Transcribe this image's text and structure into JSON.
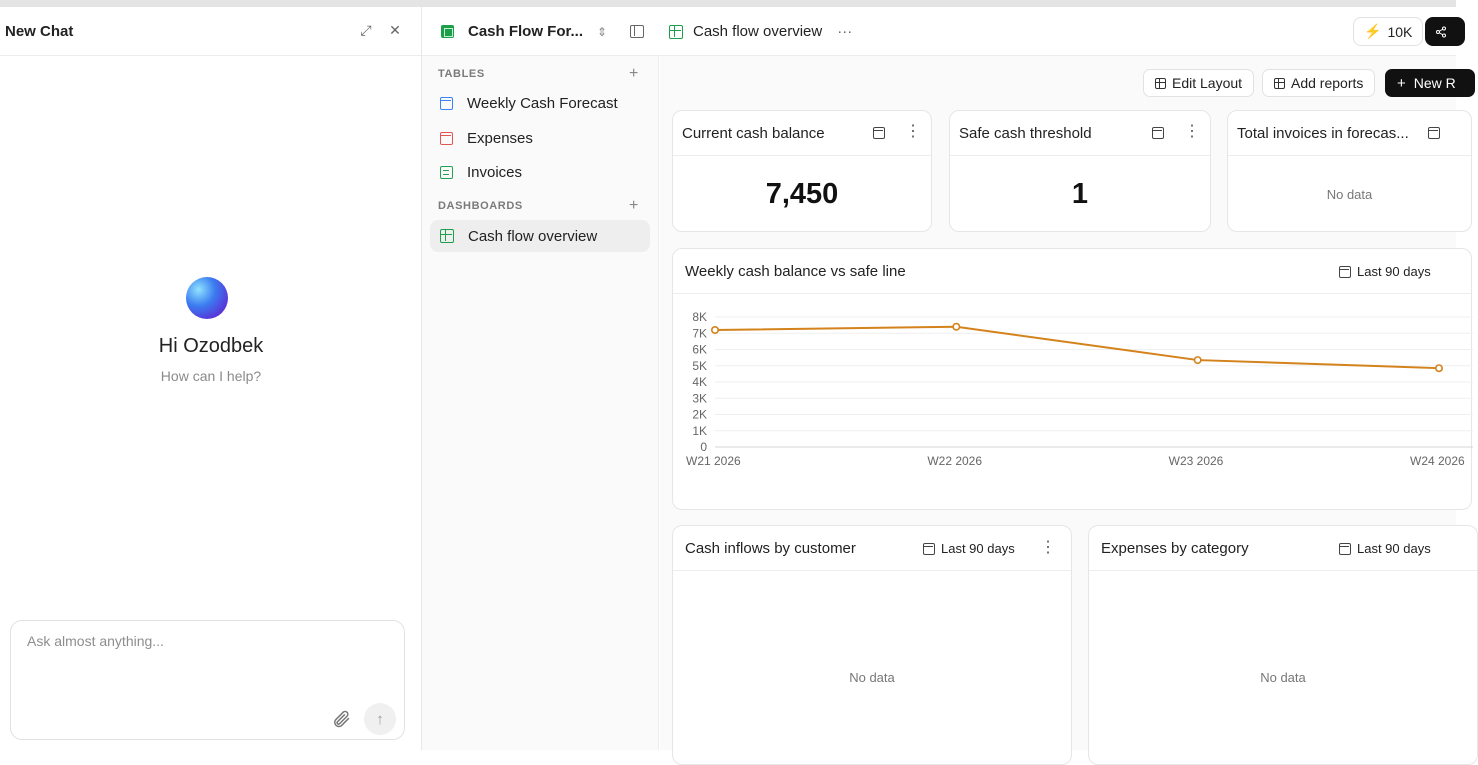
{
  "chat": {
    "title": "New Chat",
    "greeting": "Hi Ozodbek",
    "subtitle": "How can I help?",
    "input_placeholder": "Ask almost anything..."
  },
  "topbar": {
    "workspace_name": "Cash Flow For...",
    "current_view": "Cash flow overview",
    "more": "···",
    "credits": "10K"
  },
  "sidebar": {
    "tables_label": "TABLES",
    "tables": [
      {
        "label": "Weekly Cash Forecast",
        "icon": "table-icon-blue"
      },
      {
        "label": "Expenses",
        "icon": "table-icon-red"
      },
      {
        "label": "Invoices",
        "icon": "table-icon-green"
      }
    ],
    "dashboards_label": "DASHBOARDS",
    "dashboards": [
      {
        "label": "Cash flow overview",
        "icon": "grid-icon"
      }
    ]
  },
  "toolbar": {
    "edit_layout": "Edit Layout",
    "add_reports": "Add reports",
    "new_report": "New R"
  },
  "cards": {
    "current_balance": {
      "title": "Current cash balance",
      "value": "7,450"
    },
    "safe_threshold": {
      "title": "Safe cash threshold",
      "value": "1"
    },
    "total_invoices": {
      "title": "Total invoices in forecas...",
      "empty": "No data"
    },
    "weekly_chart": {
      "title": "Weekly cash balance vs safe line",
      "range": "Last 90 days"
    },
    "inflows": {
      "title": "Cash inflows by customer",
      "range": "Last 90 days",
      "empty": "No data"
    },
    "expenses": {
      "title": "Expenses by category",
      "range": "Last 90 days",
      "empty": "No data"
    }
  },
  "chart_data": {
    "type": "line",
    "categories": [
      "W21 2026",
      "W22 2026",
      "W23 2026",
      "W24 2026"
    ],
    "series": [
      {
        "values": [
          7200,
          7400,
          5350,
          4850
        ],
        "color": "#d4821b"
      }
    ],
    "y_ticks": [
      "0",
      "1K",
      "2K",
      "3K",
      "4K",
      "5K",
      "6K",
      "7K",
      "8K"
    ],
    "ylim": [
      0,
      8000
    ],
    "grid": true
  }
}
